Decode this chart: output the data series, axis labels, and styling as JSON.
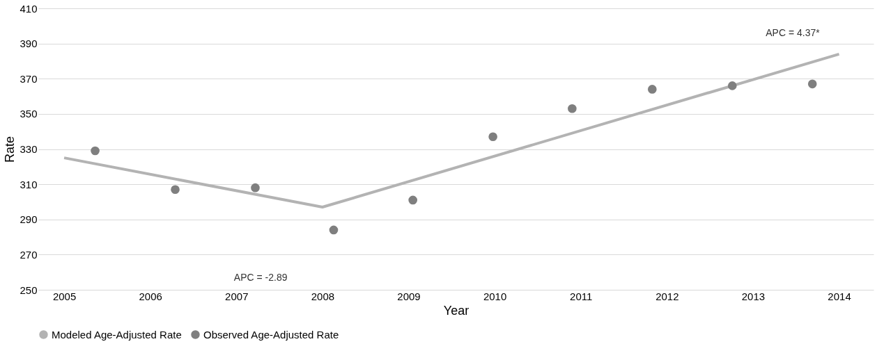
{
  "chart_data": {
    "type": "scatter",
    "xlabel": "Year",
    "ylabel": "Rate",
    "xlim": [
      2004.7,
      2014.4
    ],
    "xticks": [
      2005,
      2006,
      2007,
      2008,
      2009,
      2010,
      2011,
      2012,
      2013,
      2014
    ],
    "ylim": [
      250,
      410
    ],
    "yticks": [
      250,
      270,
      290,
      310,
      330,
      350,
      370,
      390,
      410
    ],
    "grid": "y",
    "legend": "bottom",
    "series": [
      {
        "name": "Modeled Age-Adjusted Rate",
        "type": "line",
        "color": "#b3b3b3",
        "marker": "none",
        "line_style": "solid",
        "x": [
          2005,
          2008,
          2014
        ],
        "values": [
          325,
          297,
          384
        ]
      },
      {
        "name": "Observed Age-Adjusted Rate",
        "color": "#7f7f7f",
        "marker": "circle",
        "x": [
          2005.36,
          2006.29,
          2007.22,
          2008.13,
          2009.05,
          2009.98,
          2010.9,
          2011.83,
          2012.76,
          2013.69
        ],
        "values": [
          329,
          307,
          308,
          284,
          301,
          337,
          353,
          364,
          366,
          367
        ]
      }
    ],
    "annotations": [
      "APC = -2.89",
      "APC = 4.37*"
    ]
  }
}
